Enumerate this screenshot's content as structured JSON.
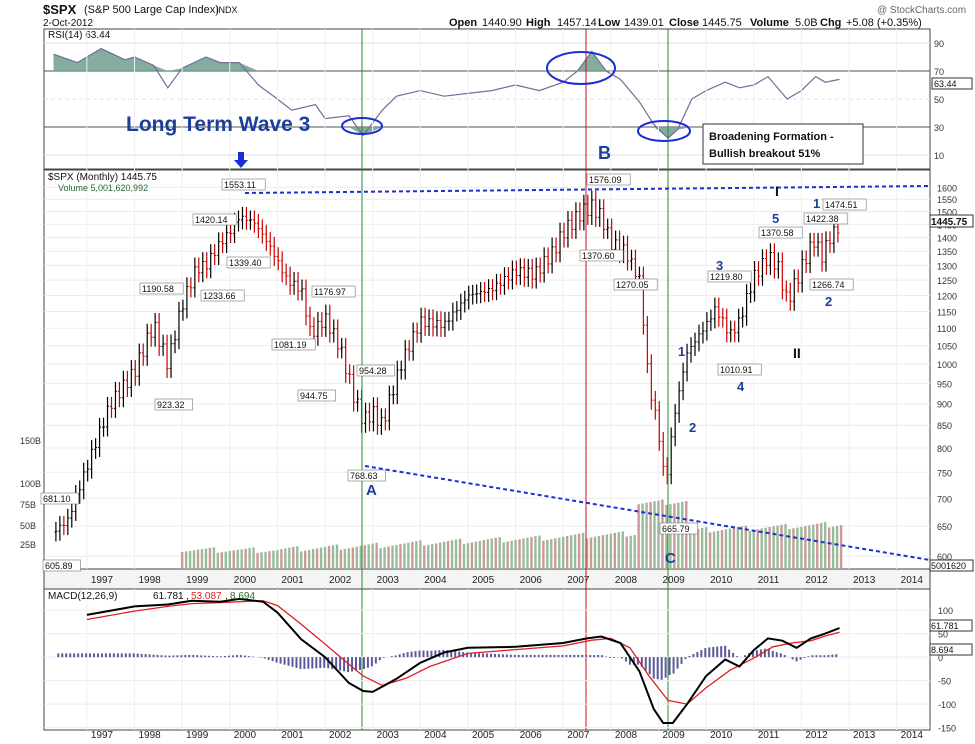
{
  "header": {
    "symbol": "$SPX",
    "name": "(S&P 500 Large Cap Index)",
    "exchange": "INDX",
    "date": "2-Oct-2012",
    "watermark": "@ StockCharts.com",
    "open_label": "Open",
    "open": "1440.90",
    "high_label": "High",
    "high": "1457.14",
    "low_label": "Low",
    "low": "1439.01",
    "close_label": "Close",
    "close": "1445.75",
    "volume_label": "Volume",
    "volume": "5.0B",
    "chg_label": "Chg",
    "chg": "+5.08 (+0.35%)"
  },
  "colors": {
    "up": "#000000",
    "down": "#cc0000",
    "vol_up": "#99bb99",
    "vol_down": "#cc9999",
    "rsi_line": "#6f6f99",
    "rsi_fill": "#6f9f8f",
    "dashed": "#1f2fd0",
    "annotation": "#1d3f9a",
    "green_line": "#2a8a2a",
    "red_line": "#cc1111",
    "macd_line": "#000000",
    "signal_line": "#e02020",
    "histogram": "#5a5a99"
  },
  "chart_data": [
    {
      "type": "line",
      "panel": "rsi",
      "legend": "RSI(14) 63.44",
      "ylim": [
        0,
        100
      ],
      "ticks": [
        10,
        30,
        50,
        70,
        90
      ],
      "overbought": 70,
      "oversold": 30,
      "last_value": "63.44",
      "x": [
        1996.3,
        1996.8,
        1997.3,
        1997.8,
        1998.0,
        1998.4,
        1998.7,
        1999.0,
        1999.5,
        1999.8,
        2000.2,
        2000.6,
        2001.0,
        2001.3,
        2001.8,
        2002.0,
        2002.5,
        2002.8,
        2003.2,
        2003.5,
        2004.0,
        2004.5,
        2005.0,
        2005.5,
        2006.0,
        2006.5,
        2007.0,
        2007.3,
        2007.6,
        2007.9,
        2008.2,
        2008.6,
        2008.9,
        2009.2,
        2009.4,
        2009.7,
        2010.0,
        2010.4,
        2010.7,
        2011.0,
        2011.3,
        2011.7,
        2012.0,
        2012.3,
        2012.5,
        2012.8
      ],
      "values": [
        82,
        76,
        86,
        78,
        80,
        74,
        58,
        72,
        80,
        76,
        76,
        60,
        50,
        42,
        46,
        36,
        38,
        24,
        42,
        52,
        56,
        52,
        54,
        56,
        60,
        56,
        62,
        70,
        84,
        70,
        64,
        48,
        32,
        22,
        28,
        50,
        56,
        62,
        58,
        60,
        66,
        50,
        56,
        66,
        62,
        64
      ]
    },
    {
      "type": "line",
      "panel": "price",
      "legend": "$SPX (Monthly) 1445.75",
      "volume_legend": "Volume 5,001,620,992",
      "scale": "log",
      "ylim": [
        580,
        1640
      ],
      "ticks": [
        600,
        650,
        700,
        750,
        800,
        850,
        900,
        950,
        1000,
        1050,
        1100,
        1150,
        1200,
        1250,
        1300,
        1350,
        1400,
        1450,
        1500,
        1550,
        1600
      ],
      "xlim": [
        1996.1,
        2014.7
      ],
      "x_ticks": [
        "1997",
        "1998",
        "1999",
        "2000",
        "2001",
        "2002",
        "2003",
        "2004",
        "2005",
        "2006",
        "2007",
        "2008",
        "2009",
        "2010",
        "2011",
        "2012",
        "2013",
        "2014"
      ],
      "last_price": "1445.75",
      "last_volume": "5001620",
      "x": [
        1996.3,
        1996.6,
        1997.0,
        1997.5,
        1998.0,
        1998.4,
        1998.7,
        1999.0,
        1999.3,
        1999.5,
        1999.8,
        2000.0,
        2000.2,
        2000.5,
        2000.8,
        2001.2,
        2001.5,
        2001.7,
        2002.0,
        2002.3,
        2002.6,
        2002.8,
        2003.0,
        2003.2,
        2003.6,
        2004.0,
        2004.5,
        2005.0,
        2005.5,
        2006.0,
        2006.4,
        2006.8,
        2007.0,
        2007.4,
        2007.6,
        2007.8,
        2008.0,
        2008.3,
        2008.6,
        2008.8,
        2008.95,
        2009.15,
        2009.3,
        2009.6,
        2010.0,
        2010.2,
        2010.5,
        2010.7,
        2011.0,
        2011.3,
        2011.5,
        2011.7,
        2011.9,
        2012.1,
        2012.3,
        2012.4,
        2012.6,
        2012.8
      ],
      "values": [
        640,
        660,
        760,
        900,
        980,
        1110,
        1000,
        1170,
        1290,
        1300,
        1380,
        1420,
        1480,
        1460,
        1380,
        1250,
        1220,
        1080,
        1130,
        1050,
        920,
        860,
        880,
        850,
        1000,
        1120,
        1110,
        1200,
        1220,
        1280,
        1270,
        1350,
        1420,
        1500,
        1520,
        1480,
        1380,
        1350,
        1250,
        940,
        870,
        720,
        850,
        1030,
        1110,
        1160,
        1080,
        1120,
        1260,
        1330,
        1300,
        1180,
        1250,
        1330,
        1400,
        1320,
        1400,
        1445
      ]
    },
    {
      "type": "bar",
      "panel": "volume",
      "ticks": [
        "25B",
        "50B",
        "75B",
        "100B",
        "150B"
      ]
    },
    {
      "type": "line",
      "panel": "macd",
      "legend_prefix": "MACD(12,26,9)",
      "macd_value": "61.781",
      "signal_value": "53.087",
      "hist_value": "8.694",
      "ylim": [
        -155,
        145
      ],
      "ticks": [
        "-150",
        "-100",
        "-50",
        "0",
        "50",
        "100"
      ],
      "series": [
        {
          "name": "MACD",
          "x": [
            1997.0,
            1998.0,
            1998.7,
            1999.2,
            1999.8,
            2000.2,
            2000.7,
            2001.0,
            2001.5,
            2002.0,
            2002.5,
            2002.8,
            2003.0,
            2003.5,
            2004.0,
            2004.5,
            2005.0,
            2006.0,
            2007.0,
            2007.5,
            2007.8,
            2008.2,
            2008.6,
            2008.9,
            2009.1,
            2009.3,
            2009.6,
            2010.0,
            2010.4,
            2010.7,
            2011.0,
            2011.3,
            2011.6,
            2011.9,
            2012.2,
            2012.5,
            2012.8
          ],
          "values": [
            90,
            108,
            112,
            120,
            118,
            124,
            118,
            95,
            38,
            0,
            -55,
            -72,
            -74,
            -46,
            -12,
            10,
            20,
            22,
            30,
            40,
            44,
            30,
            -30,
            -110,
            -140,
            -140,
            -100,
            -40,
            -5,
            -20,
            15,
            40,
            35,
            20,
            40,
            50,
            61.8
          ]
        },
        {
          "name": "Signal",
          "x": [
            1997.0,
            1998.0,
            1998.7,
            1999.2,
            1999.8,
            2000.2,
            2000.7,
            2001.0,
            2001.5,
            2002.0,
            2002.5,
            2002.8,
            2003.2,
            2003.7,
            2004.2,
            2005.0,
            2006.0,
            2007.0,
            2007.6,
            2008.0,
            2008.4,
            2008.8,
            2009.2,
            2009.6,
            2010.0,
            2010.5,
            2011.0,
            2011.4,
            2011.8,
            2012.2,
            2012.5,
            2012.8
          ],
          "values": [
            80,
            98,
            108,
            114,
            116,
            118,
            120,
            110,
            70,
            28,
            -15,
            -40,
            -60,
            -45,
            -20,
            8,
            16,
            24,
            36,
            40,
            20,
            -40,
            -92,
            -100,
            -65,
            -28,
            -2,
            22,
            30,
            35,
            45,
            53.1
          ]
        }
      ]
    }
  ],
  "annotations": {
    "long_term_wave": "Long Term Wave 3",
    "broadening_title": "Broadening Formation -",
    "broadening_sub": "Bullish breakout 51%",
    "wave_A": "A",
    "wave_B": "B",
    "wave_C": "C",
    "wave_I": "I",
    "wave_II": "II",
    "w1": "1",
    "w2": "2",
    "w3": "3",
    "w4": "4",
    "w5": "5",
    "w1b": "1",
    "w2b": "2"
  },
  "price_labels": [
    "681.10",
    "605.89",
    "1190.58",
    "923.32",
    "1420.14",
    "1553.11",
    "1339.40",
    "1233.66",
    "1176.97",
    "1081.19",
    "944.75",
    "954.28",
    "768.63",
    "1576.09",
    "1370.60",
    "1270.05",
    "665.79",
    "1219.80",
    "1010.91",
    "1370.58",
    "1422.38",
    "1474.51",
    "1266.74"
  ]
}
